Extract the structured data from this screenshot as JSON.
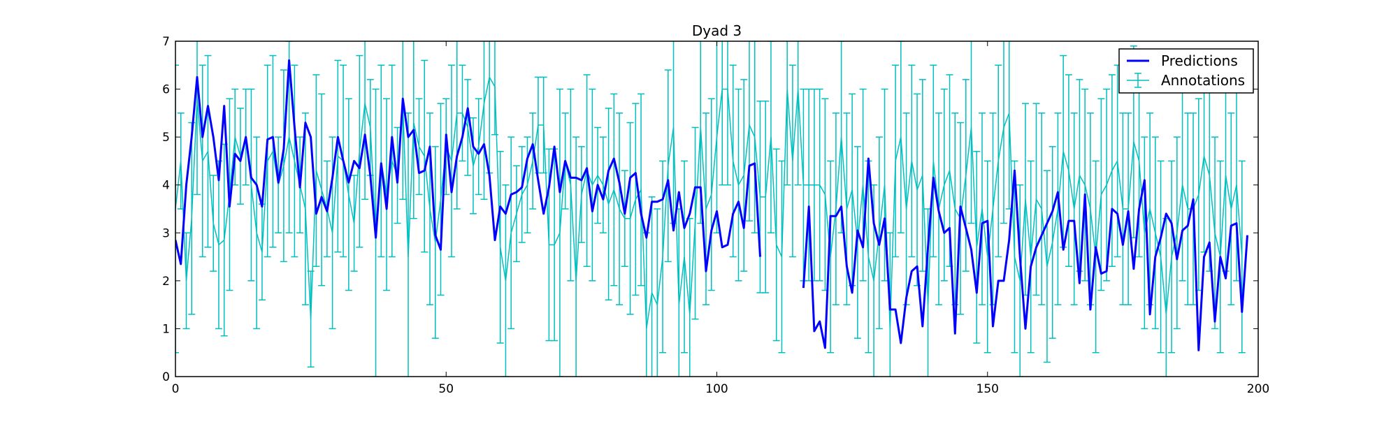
{
  "chart_data": {
    "type": "line",
    "title": "Dyad 3",
    "xlabel": "",
    "ylabel": "",
    "xlim": [
      0,
      200
    ],
    "ylim": [
      0,
      7
    ],
    "xticks": [
      "0",
      "50",
      "100",
      "150",
      "200"
    ],
    "yticks": [
      "0",
      "1",
      "2",
      "3",
      "4",
      "5",
      "6",
      "7"
    ],
    "grid": false,
    "legend_position": "top-right",
    "series": [
      {
        "name": "Predictions",
        "style": "line",
        "color": "#0000ff",
        "x_start": 0,
        "values": [
          2.85,
          2.35,
          4.0,
          5.0,
          6.25,
          5.0,
          5.65,
          5.0,
          4.1,
          5.65,
          3.55,
          4.65,
          4.5,
          5.0,
          4.15,
          4.0,
          3.55,
          4.95,
          5.0,
          4.05,
          4.75,
          6.6,
          5.2,
          3.95,
          5.3,
          5.0,
          3.4,
          3.75,
          3.45,
          4.15,
          5.0,
          4.5,
          4.05,
          4.5,
          4.35,
          5.05,
          4.2,
          2.9,
          4.45,
          3.5,
          5.0,
          4.05,
          5.8,
          5.0,
          5.15,
          4.25,
          4.3,
          4.8,
          2.95,
          2.65,
          5.05,
          3.85,
          4.6,
          5.0,
          5.6,
          4.8,
          4.65,
          4.85,
          4.2,
          2.85,
          3.55,
          3.4,
          3.8,
          3.85,
          3.95,
          4.55,
          4.85,
          4.1,
          3.4,
          3.95,
          4.8,
          3.85,
          4.5,
          4.15,
          4.15,
          4.1,
          4.35,
          3.45,
          4.0,
          3.7,
          4.3,
          4.55,
          4.05,
          3.4,
          4.15,
          4.25,
          3.4,
          2.9,
          3.65,
          3.65,
          3.7,
          4.1,
          3.05,
          3.85,
          3.1,
          3.4,
          3.95,
          3.95,
          2.2,
          3.05,
          3.45,
          2.7,
          2.75,
          3.4,
          3.65,
          3.1,
          4.4,
          4.45,
          2.5,
          null,
          null,
          null,
          null,
          null,
          null,
          null,
          1.85,
          3.55,
          0.95,
          1.15,
          0.6,
          3.35,
          3.35,
          3.55,
          2.3,
          1.75,
          3.05,
          2.7,
          4.55,
          3.2,
          2.75,
          3.3,
          1.4,
          1.4,
          0.7,
          1.65,
          2.2,
          2.3,
          1.05,
          2.7,
          4.15,
          3.45,
          3.0,
          3.1,
          0.9,
          3.55,
          3.1,
          2.65,
          1.75,
          3.2,
          3.25,
          1.05,
          2.0,
          2.0,
          2.85,
          4.3,
          2.5,
          1.0,
          2.3,
          2.7,
          2.95,
          3.2,
          3.45,
          3.85,
          2.65,
          3.25,
          3.25,
          1.95,
          3.8,
          1.4,
          2.7,
          2.15,
          2.2,
          3.5,
          3.4,
          2.75,
          3.45,
          2.25,
          3.5,
          4.1,
          1.3,
          2.5,
          2.9,
          3.4,
          3.2,
          2.45,
          3.05,
          3.15,
          3.7,
          0.55,
          2.5,
          2.8,
          1.15,
          2.5,
          2.05,
          3.15,
          3.2,
          1.35,
          2.95
        ]
      },
      {
        "name": "Annotations",
        "style": "errorbar",
        "color": "#00bfbf",
        "x_start": 0,
        "values": [
          3.5,
          4.5,
          2.0,
          3.3,
          5.8,
          4.5,
          4.7,
          3.2,
          2.75,
          2.85,
          3.8,
          5.0,
          4.6,
          5.0,
          4.0,
          3.0,
          2.6,
          4.5,
          4.7,
          4.0,
          4.4,
          5.0,
          4.5,
          4.0,
          3.5,
          1.2,
          4.3,
          3.9,
          3.5,
          3.0,
          4.6,
          4.5,
          3.8,
          3.2,
          4.7,
          5.7,
          5.2,
          3.0,
          4.5,
          3.8,
          4.5,
          4.2,
          5.7,
          2.5,
          5.3,
          4.8,
          4.6,
          3.5,
          2.8,
          3.7,
          4.8,
          4.5,
          5.5,
          5.5,
          5.2,
          4.4,
          4.8,
          5.7,
          6.25,
          6.05,
          2.7,
          2.0,
          3.0,
          3.4,
          3.8,
          4.0,
          4.5,
          5.25,
          5.25,
          2.75,
          2.75,
          3.0,
          4.5,
          4.0,
          2.0,
          3.8,
          4.3,
          4.0,
          4.2,
          4.0,
          3.6,
          3.9,
          3.5,
          3.3,
          3.3,
          3.7,
          3.9,
          1.0,
          1.75,
          1.5,
          2.5,
          4.4,
          5.2,
          1.5,
          2.5,
          1.3,
          3.2,
          5.2,
          3.5,
          3.8,
          5.0,
          6.0,
          6.0,
          4.5,
          4.0,
          4.2,
          5.25,
          5.0,
          3.75,
          3.75,
          5.0,
          2.75,
          2.5,
          6.0,
          4.5,
          6.0,
          4.0,
          4.0,
          4.0,
          4.0,
          3.8,
          2.5,
          3.5,
          5.0,
          3.5,
          3.9,
          2.8,
          4.0,
          2.5,
          2.0,
          3.0,
          4.0,
          1.0,
          4.5,
          5.0,
          3.5,
          4.5,
          3.9,
          4.2,
          1.5,
          4.5,
          3.5,
          4.0,
          4.3,
          3.5,
          3.3,
          4.2,
          5.2,
          2.7,
          3.5,
          2.5,
          3.5,
          4.5,
          5.2,
          5.5,
          2.5,
          2.0,
          3.7,
          2.5,
          3.7,
          3.5,
          2.3,
          2.8,
          3.5,
          4.7,
          4.3,
          3.5,
          4.2,
          4.0,
          3.5,
          2.5,
          3.8,
          4.0,
          4.3,
          4.5,
          3.5,
          3.5,
          4.9,
          4.5,
          3.0,
          3.5,
          3.0,
          2.5,
          1.3,
          2.5,
          3.0,
          4.0,
          3.5,
          3.5,
          3.8,
          4.6,
          4.2,
          3.0,
          2.5,
          4.2,
          3.5,
          4.0,
          2.5
        ],
        "errors": [
          3,
          1,
          1,
          2,
          2,
          2,
          2,
          1,
          1.75,
          2,
          2,
          1,
          1,
          1,
          2,
          2,
          1,
          2,
          2,
          1,
          2,
          2,
          2,
          1,
          2,
          1,
          2,
          2,
          1,
          2,
          2,
          2,
          2,
          1,
          2,
          2,
          1,
          3,
          2,
          2,
          2,
          1,
          2,
          3,
          2,
          1,
          2,
          2,
          2,
          2,
          1,
          2,
          2,
          1,
          1,
          1,
          1,
          2,
          2,
          1,
          2,
          2,
          2,
          1,
          1,
          1,
          1,
          1,
          1,
          2,
          2,
          3,
          1,
          2,
          3,
          1,
          2,
          2,
          1,
          1,
          2,
          2,
          2,
          1,
          2,
          2,
          2,
          2,
          2,
          2,
          2,
          2,
          2,
          2,
          2,
          2,
          2,
          2,
          2,
          2,
          2,
          2,
          2,
          2,
          2,
          2,
          2,
          2,
          2,
          2,
          2,
          2,
          2,
          2,
          2,
          2,
          2,
          2,
          2,
          2,
          2,
          2,
          2,
          2,
          2,
          2,
          2,
          2,
          2,
          2,
          2,
          2,
          2,
          2,
          2,
          2,
          2,
          2,
          2,
          2,
          2,
          2,
          2,
          2,
          2,
          2,
          2,
          2,
          2,
          2,
          2,
          2,
          2,
          2,
          2,
          2,
          2,
          2,
          2,
          2,
          2,
          2,
          2,
          2,
          2,
          2,
          2,
          2,
          2,
          2,
          2,
          2,
          2,
          2,
          2,
          2,
          2,
          2,
          2,
          2,
          2,
          2,
          2,
          2,
          2,
          2,
          2,
          2,
          2,
          2,
          2,
          2,
          2,
          2,
          2,
          2,
          2,
          2
        ]
      }
    ]
  }
}
